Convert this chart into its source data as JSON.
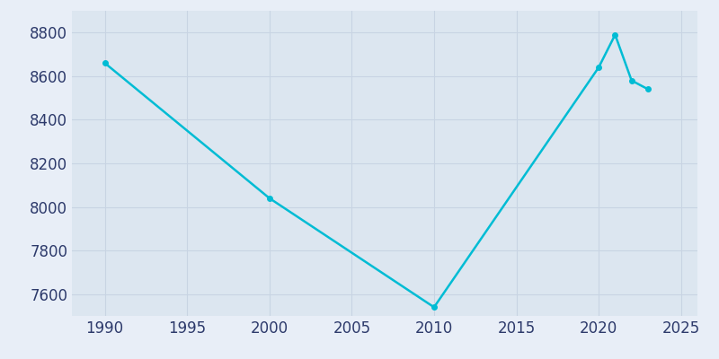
{
  "years": [
    1990,
    2000,
    2010,
    2020,
    2021,
    2022,
    2023
  ],
  "population": [
    8660,
    8040,
    7540,
    8640,
    8790,
    8580,
    8540
  ],
  "line_color": "#00bcd4",
  "marker": "o",
  "marker_size": 4,
  "line_width": 1.8,
  "bg_color": "#e8eef7",
  "plot_bg_color": "#dce6f0",
  "xlim": [
    1988,
    2026
  ],
  "ylim": [
    7500,
    8900
  ],
  "xticks": [
    1990,
    1995,
    2000,
    2005,
    2010,
    2015,
    2020,
    2025
  ],
  "yticks": [
    7600,
    7800,
    8000,
    8200,
    8400,
    8600,
    8800
  ],
  "grid_color": "#c8d4e3",
  "tick_color": "#2d3a6b",
  "tick_fontsize": 12
}
